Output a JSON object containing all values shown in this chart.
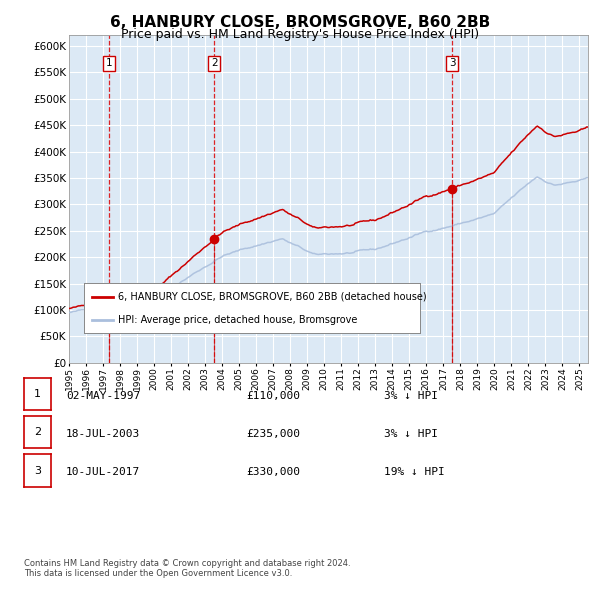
{
  "title": "6, HANBURY CLOSE, BROMSGROVE, B60 2BB",
  "subtitle": "Price paid vs. HM Land Registry's House Price Index (HPI)",
  "title_fontsize": 11,
  "subtitle_fontsize": 9,
  "bg_color": "#dce9f5",
  "grid_color": "#ffffff",
  "sale1": {
    "date_num": 1997.33,
    "price": 110000,
    "label": "1"
  },
  "sale2": {
    "date_num": 2003.54,
    "price": 235000,
    "label": "2"
  },
  "sale3": {
    "date_num": 2017.52,
    "price": 330000,
    "label": "3"
  },
  "vline_color": "#dd0000",
  "house_line_color": "#cc0000",
  "hpi_line_color": "#aabfdd",
  "dot_color": "#cc0000",
  "legend_box_entries": [
    "6, HANBURY CLOSE, BROMSGROVE, B60 2BB (detached house)",
    "HPI: Average price, detached house, Bromsgrove"
  ],
  "table_entries": [
    {
      "num": "1",
      "date": "02-MAY-1997",
      "price": "£110,000",
      "hpi": "3% ↓ HPI"
    },
    {
      "num": "2",
      "date": "18-JUL-2003",
      "price": "£235,000",
      "hpi": "3% ↓ HPI"
    },
    {
      "num": "3",
      "date": "10-JUL-2017",
      "price": "£330,000",
      "hpi": "19% ↓ HPI"
    }
  ],
  "footer": "Contains HM Land Registry data © Crown copyright and database right 2024.\nThis data is licensed under the Open Government Licence v3.0.",
  "ylim": [
    0,
    620000
  ],
  "xlim_start": 1995.0,
  "xlim_end": 2025.5,
  "yticks": [
    0,
    50000,
    100000,
    150000,
    200000,
    250000,
    300000,
    350000,
    400000,
    450000,
    500000,
    550000,
    600000
  ],
  "ytick_labels": [
    "£0",
    "£50K",
    "£100K",
    "£150K",
    "£200K",
    "£250K",
    "£300K",
    "£350K",
    "£400K",
    "£450K",
    "£500K",
    "£550K",
    "£600K"
  ],
  "xticks": [
    1995,
    1996,
    1997,
    1998,
    1999,
    2000,
    2001,
    2002,
    2003,
    2004,
    2005,
    2006,
    2007,
    2008,
    2009,
    2010,
    2011,
    2012,
    2013,
    2014,
    2015,
    2016,
    2017,
    2018,
    2019,
    2020,
    2021,
    2022,
    2023,
    2024,
    2025
  ]
}
